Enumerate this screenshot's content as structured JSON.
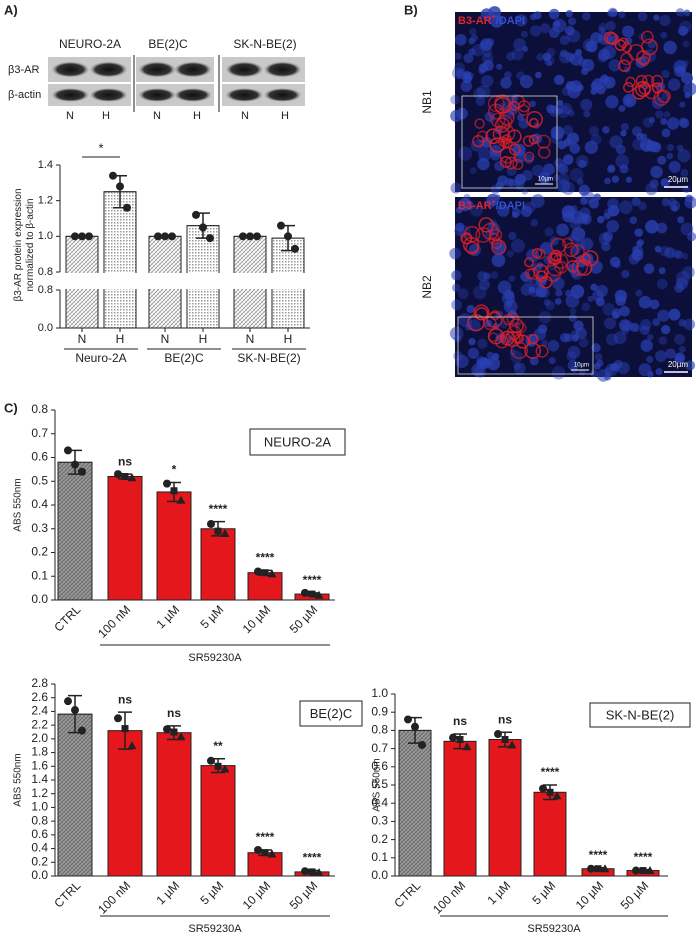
{
  "panel_labels": [
    "A)",
    "B)",
    "C)"
  ],
  "blot": {
    "cell_lines": [
      "NEURO-2A",
      "BE(2)C",
      "SK-N-BE(2)"
    ],
    "rows": [
      "β3-AR",
      "β-actin"
    ],
    "lanes": [
      "N",
      "H",
      "N",
      "H",
      "N",
      "H"
    ]
  },
  "micrographs": {
    "stain": [
      "B3-AR",
      "+",
      "/DAPI"
    ],
    "samples": [
      "NB1",
      "NB2"
    ],
    "scale_bars": [
      "10µm",
      "20µm"
    ]
  },
  "chart_data": [
    {
      "type": "bar",
      "ylabel": [
        "β3-AR protein expression",
        "normalized to β-actin"
      ],
      "categories": [
        "N",
        "H",
        "N",
        "H",
        "N",
        "H"
      ],
      "groups": [
        "Neuro-2A",
        "BE(2)C",
        "SK-N-BE(2)"
      ],
      "values": [
        1.0,
        1.25,
        1.0,
        1.06,
        1.0,
        0.99
      ],
      "errors": [
        0.005,
        0.09,
        0.005,
        0.07,
        0.005,
        0.07
      ],
      "points": [
        [
          1.0,
          1.0,
          1.0
        ],
        [
          1.34,
          1.28,
          1.16
        ],
        [
          1.0,
          1.0,
          1.0
        ],
        [
          1.12,
          1.05,
          0.99
        ],
        [
          1.0,
          1.0,
          1.0
        ],
        [
          1.06,
          1.0,
          0.93
        ]
      ],
      "color": "#ffffff",
      "significance": "*",
      "ylim": [
        0.8,
        1.4
      ],
      "yticks": [
        0.8,
        {
          "value": 1.0,
          "label": "1.0"
        },
        1.2,
        1.4
      ],
      "lower_ylim": [
        0,
        0.8
      ],
      "lower_yticks": [
        {
          "value": 0,
          "label": "0.0"
        },
        0.8
      ]
    },
    {
      "type": "bar",
      "title": "NEURO-2A",
      "xlabel": "SR59230A",
      "ylabel": "ABS 550nm",
      "categories": [
        "CTRL",
        "100 nM",
        "1 µM",
        "5 µM",
        "10 µM",
        "50 µM"
      ],
      "values": [
        0.58,
        0.52,
        0.455,
        0.3,
        0.115,
        0.025
      ],
      "errors": [
        0.05,
        0.01,
        0.04,
        0.03,
        0.01,
        0.005
      ],
      "points": [
        [
          0.63,
          0.57,
          0.54
        ],
        [
          0.53,
          0.52,
          0.515
        ],
        [
          0.49,
          0.46,
          0.42
        ],
        [
          0.32,
          0.29,
          0.28
        ],
        [
          0.12,
          0.115,
          0.11
        ],
        [
          0.03,
          0.025,
          0.02
        ]
      ],
      "annotations": [
        null,
        "ns",
        "*",
        "****",
        "****",
        "****"
      ],
      "colors": [
        "#9a9a9a",
        "#e3171c",
        "#e3171c",
        "#e3171c",
        "#e3171c",
        "#e3171c"
      ],
      "ylim": [
        0,
        0.8
      ],
      "yticks": [
        {
          "value": 0,
          "label": "0.0"
        },
        0.1,
        0.2,
        0.3,
        0.4,
        0.5,
        0.6,
        0.7,
        0.8
      ]
    },
    {
      "type": "bar",
      "title": "BE(2)C",
      "xlabel": "SR59230A",
      "ylabel": "ABS 550nm",
      "categories": [
        "CTRL",
        "100 nM",
        "1 µM",
        "5 µM",
        "10 µM",
        "50 µM"
      ],
      "values": [
        2.36,
        2.12,
        2.09,
        1.61,
        0.34,
        0.06
      ],
      "errors": [
        0.27,
        0.27,
        0.1,
        0.1,
        0.04,
        0.02
      ],
      "points": [
        [
          2.55,
          2.42,
          2.12
        ],
        [
          2.3,
          2.15,
          1.9
        ],
        [
          2.14,
          2.1,
          2.03
        ],
        [
          1.68,
          1.6,
          1.56
        ],
        [
          0.38,
          0.34,
          0.32
        ],
        [
          0.07,
          0.06,
          0.05
        ]
      ],
      "annotations": [
        null,
        "ns",
        "ns",
        "**",
        "****",
        "****"
      ],
      "colors": [
        "#9a9a9a",
        "#e3171c",
        "#e3171c",
        "#e3171c",
        "#e3171c",
        "#e3171c"
      ],
      "ylim": [
        0,
        2.8
      ],
      "yticks": [
        {
          "value": 0,
          "label": "0.0"
        },
        0.2,
        0.4,
        0.6,
        0.8,
        {
          "value": 1.0,
          "label": "1.0"
        },
        1.2,
        1.4,
        1.6,
        1.8,
        {
          "value": 2.0,
          "label": "2.0"
        },
        2.2,
        2.4,
        2.6,
        2.8
      ]
    },
    {
      "type": "bar",
      "title": "SK-N-BE(2)",
      "xlabel": "SR59230A",
      "ylabel": "ABS 550nm",
      "categories": [
        "CTRL",
        "100 nM",
        "1 µM",
        "5 µM",
        "10 µM",
        "50 µM"
      ],
      "values": [
        0.8,
        0.74,
        0.75,
        0.46,
        0.04,
        0.03
      ],
      "errors": [
        0.07,
        0.04,
        0.04,
        0.04,
        0.005,
        0.005
      ],
      "points": [
        [
          0.86,
          0.82,
          0.72
        ],
        [
          0.76,
          0.75,
          0.71
        ],
        [
          0.78,
          0.75,
          0.72
        ],
        [
          0.48,
          0.46,
          0.44
        ],
        [
          0.04,
          0.04,
          0.04
        ],
        [
          0.03,
          0.03,
          0.03
        ]
      ],
      "annotations": [
        null,
        "ns",
        "ns",
        "****",
        "****",
        "****"
      ],
      "colors": [
        "#9a9a9a",
        "#e3171c",
        "#e3171c",
        "#e3171c",
        "#e3171c",
        "#e3171c"
      ],
      "ylim": [
        0,
        1.0
      ],
      "yticks": [
        {
          "value": 0,
          "label": "0.0"
        },
        0.1,
        0.2,
        0.3,
        0.4,
        0.5,
        0.6,
        0.7,
        0.8,
        0.9,
        {
          "value": 1.0,
          "label": "1.0"
        }
      ]
    }
  ]
}
